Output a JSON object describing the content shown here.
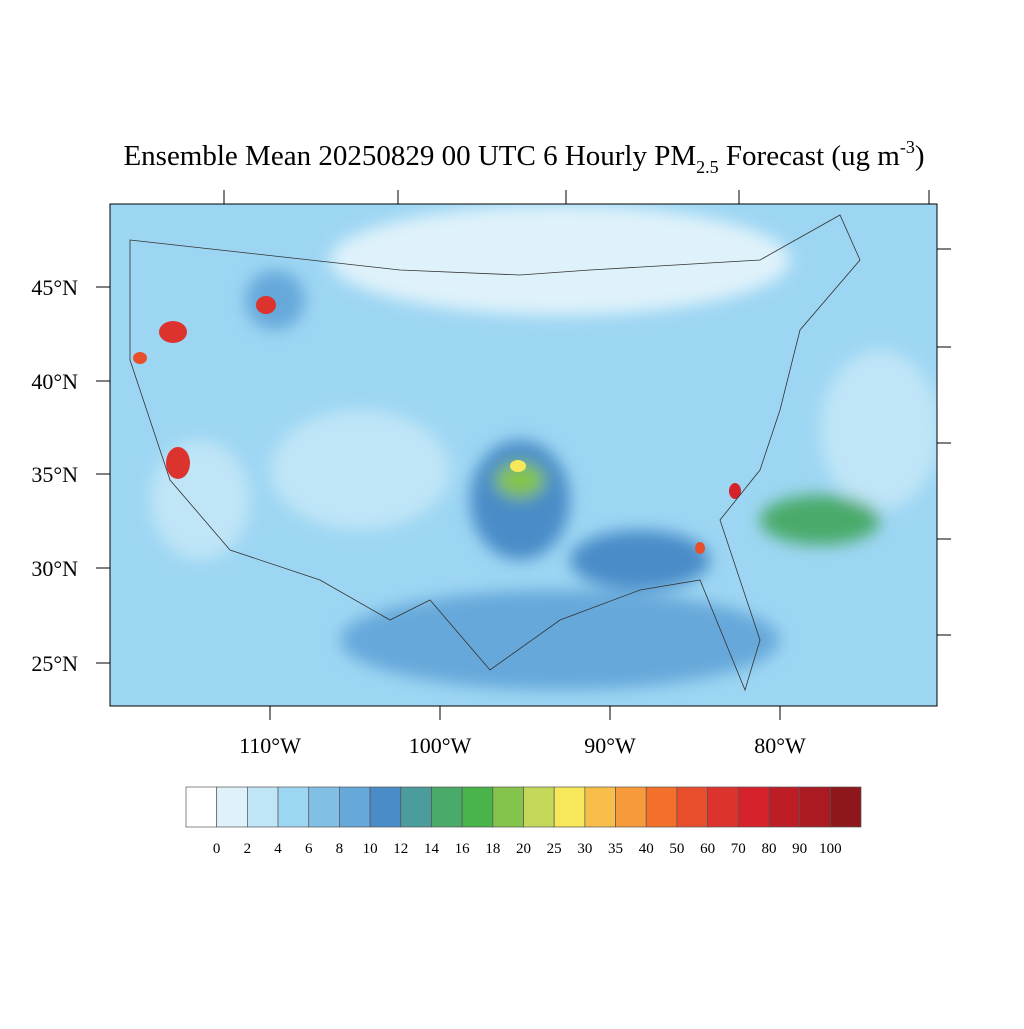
{
  "title": {
    "main": "Ensemble Mean 20250829 00 UTC 6 Hourly PM",
    "sub": "2.5",
    "rest": " Forecast (ug m",
    "sup": "-3",
    "end": ")"
  },
  "lat_labels": [
    "45°N",
    "40°N",
    "35°N",
    "30°N",
    "25°N"
  ],
  "lon_labels": [
    "110°W",
    "100°W",
    "90°W",
    "80°W"
  ],
  "colorbar": {
    "labels": [
      0,
      2,
      4,
      6,
      8,
      10,
      12,
      14,
      16,
      18,
      20,
      25,
      30,
      35,
      40,
      50,
      60,
      70,
      80,
      90,
      100
    ],
    "colors": [
      "#ffffff",
      "#dff2fb",
      "#bfe5f7",
      "#9dd6f3",
      "#81bfe5",
      "#66a8da",
      "#4a8cc8",
      "#4b9c9c",
      "#4aaa6a",
      "#49b44a",
      "#85c44a",
      "#c5d85a",
      "#f6e85a",
      "#f7be4a",
      "#f79a3c",
      "#f3702a",
      "#e94e2c",
      "#dc332e",
      "#d6232b",
      "#bd1d25",
      "#a91a22",
      "#8e171c"
    ]
  }
}
